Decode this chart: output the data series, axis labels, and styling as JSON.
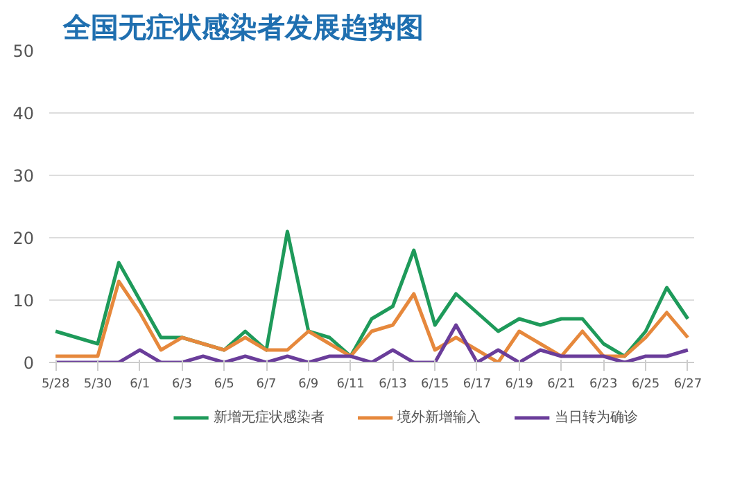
{
  "chart_data": {
    "type": "line",
    "title": "全国无症状感染者发展趋势图",
    "categories": [
      "5/28",
      null,
      "5/30",
      null,
      "6/1",
      null,
      "6/3",
      null,
      "6/5",
      null,
      "6/7",
      null,
      "6/9",
      null,
      "6/11",
      null,
      "6/13",
      null,
      "6/15",
      null,
      "6/17",
      null,
      "6/19",
      null,
      "6/21",
      null,
      "6/23",
      null,
      "6/25",
      null,
      "6/27"
    ],
    "series": [
      {
        "name": "新增无症状感染者",
        "color": "#1e9a5a",
        "values": [
          5,
          4,
          3,
          16,
          10,
          4,
          4,
          3,
          2,
          5,
          2,
          21,
          5,
          4,
          1,
          7,
          9,
          18,
          6,
          11,
          8,
          5,
          7,
          6,
          7,
          7,
          3,
          1,
          5,
          12,
          7
        ]
      },
      {
        "name": "境外新增输入",
        "color": "#e6883c",
        "values": [
          1,
          1,
          1,
          13,
          8,
          2,
          4,
          3,
          2,
          4,
          2,
          2,
          5,
          3,
          1,
          5,
          6,
          11,
          2,
          4,
          2,
          0,
          5,
          3,
          1,
          5,
          1,
          1,
          4,
          8,
          4
        ]
      },
      {
        "name": "当日转为确诊",
        "color": "#6a3d9a",
        "values": [
          0,
          0,
          0,
          0,
          2,
          0,
          0,
          1,
          0,
          1,
          0,
          1,
          0,
          1,
          1,
          0,
          2,
          0,
          0,
          6,
          0,
          2,
          0,
          2,
          1,
          1,
          1,
          0,
          1,
          1,
          2
        ]
      }
    ],
    "ylim": [
      0,
      50
    ],
    "yticks": [
      0,
      10,
      20,
      30,
      40,
      50
    ],
    "grid": "y",
    "legend": "bottom",
    "marker": "none",
    "line_style": "solid"
  }
}
